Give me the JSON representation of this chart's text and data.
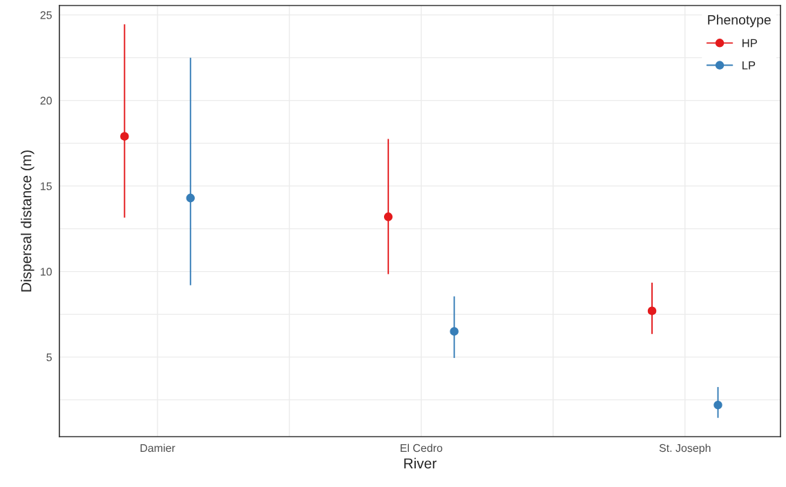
{
  "chart_data": {
    "type": "scatter",
    "xlabel": "River",
    "ylabel": "Dispersal distance (m)",
    "legend_title": "Phenotype",
    "categories": [
      "Damier",
      "El Cedro",
      "St. Joseph"
    ],
    "series": [
      {
        "name": "HP",
        "color": "#e41a1c",
        "values": [
          17.9,
          13.2,
          7.7
        ],
        "errors": [
          [
            13.15,
            24.45
          ],
          [
            9.85,
            17.75
          ],
          [
            6.35,
            9.35
          ]
        ]
      },
      {
        "name": "LP",
        "color": "#377eb8",
        "values": [
          14.3,
          6.5,
          2.2
        ],
        "errors": [
          [
            9.2,
            22.5
          ],
          [
            4.95,
            8.55
          ],
          [
            1.45,
            3.25
          ]
        ]
      }
    ],
    "ylim": [
      0.35,
      25.55
    ],
    "yticks": [
      5,
      10,
      15,
      20,
      25
    ],
    "grid": true,
    "legend": "top right",
    "marker": "circle"
  }
}
